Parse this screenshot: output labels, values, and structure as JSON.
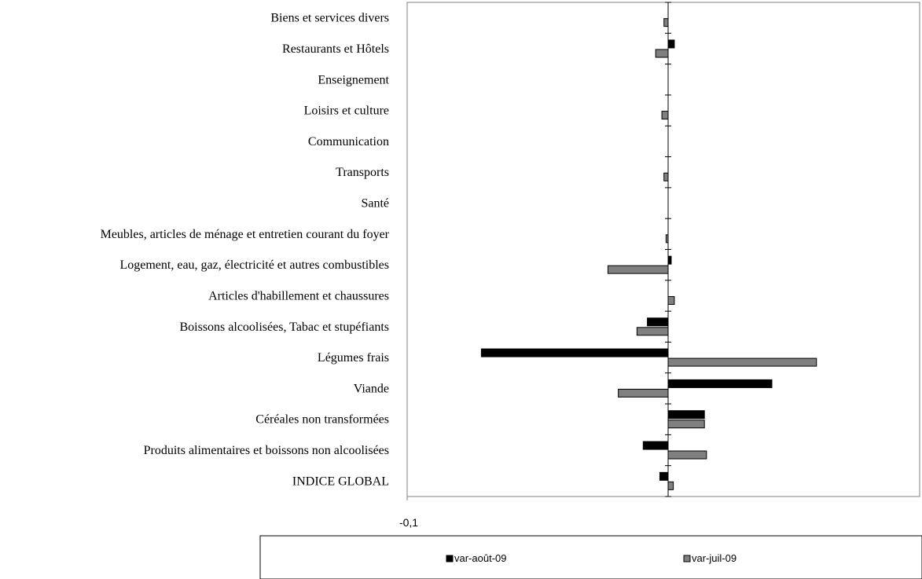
{
  "chart_data": {
    "type": "bar",
    "orientation": "horizontal",
    "categories": [
      "INDICE GLOBAL",
      "Produits alimentaires et boissons non alcoolisées",
      "Céréales non transformées",
      "Viande",
      "Légumes frais",
      "Boissons alcoolisées,  Tabac et stupéfiants",
      "Articles d'habillement et chaussures",
      "Logement, eau, gaz, électricité et autres combustibles",
      "Meubles, articles de ménage et entretien courant du foyer",
      "Santé",
      "Transports",
      "Communication",
      "Loisirs et culture",
      "Enseignement",
      "Restaurants et Hôtels",
      "Biens et services divers"
    ],
    "series": [
      {
        "name": "var-août-09",
        "color": "#000000",
        "values": [
          -0.0016,
          -0.0048,
          0.007,
          0.02,
          -0.036,
          -0.004,
          0,
          0.0006,
          0,
          0,
          0,
          0,
          0,
          0,
          0.0012,
          0
        ]
      },
      {
        "name": "var-juil-09",
        "color": "#808080",
        "values": [
          0.001,
          0.0074,
          0.007,
          -0.0096,
          0.0286,
          -0.006,
          0.0012,
          -0.0116,
          -0.0004,
          0,
          -0.0008,
          0,
          -0.0012,
          0,
          -0.0024,
          -0.0008
        ]
      }
    ],
    "xlim": [
      -0.05,
      0.05
    ],
    "x_tick_labels": [
      "-0,1"
    ],
    "xlabel": "",
    "ylabel": "",
    "title": "",
    "grid": false,
    "legend_position": "bottom"
  }
}
